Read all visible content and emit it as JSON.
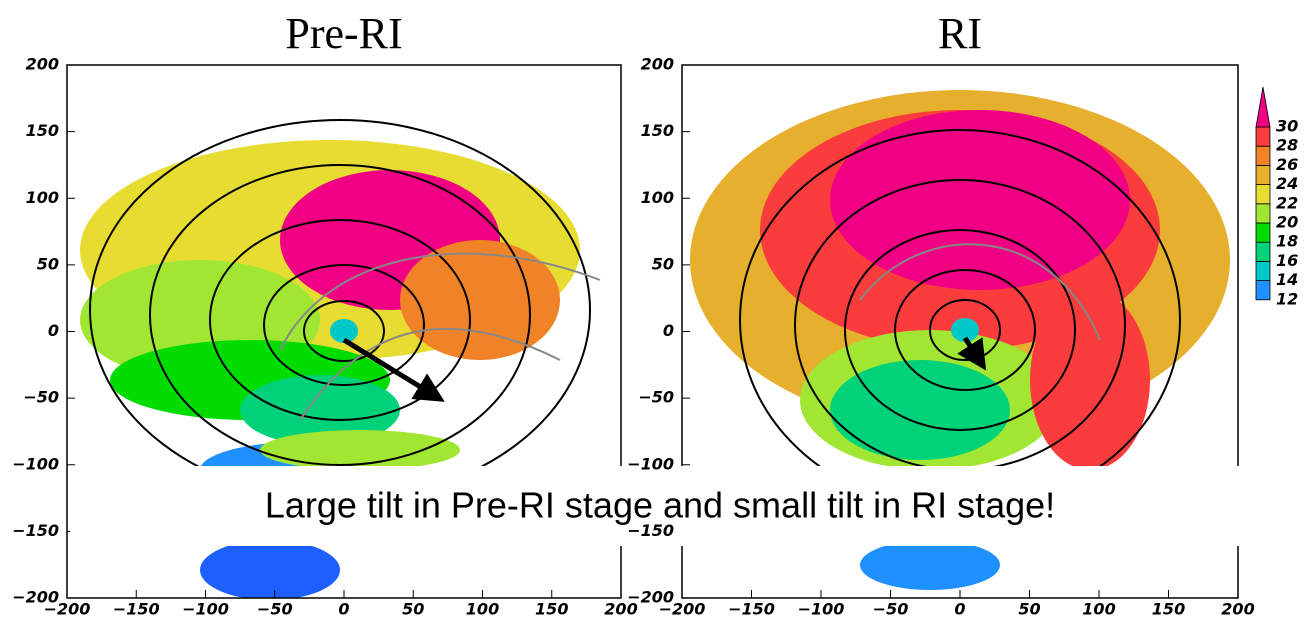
{
  "chart_data": [
    {
      "type": "contour",
      "title": "Pre-RI",
      "xlim": [
        -200,
        200
      ],
      "ylim": [
        -200,
        200
      ],
      "xticks": [
        {
          "value": -200,
          "label": "−200"
        },
        {
          "value": -150,
          "label": "−150"
        },
        {
          "value": -100,
          "label": "−100"
        },
        {
          "value": -50,
          "label": "−50"
        },
        0,
        50,
        100,
        150,
        200
      ],
      "yticks": [
        {
          "value": -200,
          "label": "−200"
        },
        {
          "value": -150,
          "label": "−150"
        },
        {
          "value": -100,
          "label": "−100"
        },
        {
          "value": -50,
          "label": "−50"
        },
        0,
        50,
        100,
        150,
        200
      ]
    },
    {
      "type": "contour",
      "title": "RI",
      "xlim": [
        -200,
        200
      ],
      "ylim": [
        -200,
        200
      ],
      "xticks": [
        {
          "value": -200,
          "label": "−200"
        },
        {
          "value": -150,
          "label": "−150"
        },
        {
          "value": -100,
          "label": "−100"
        },
        {
          "value": -50,
          "label": "−50"
        },
        0,
        50,
        100,
        150,
        200
      ],
      "yticks": [
        {
          "value": -200,
          "label": "−200"
        },
        {
          "value": -150,
          "label": "−150"
        },
        {
          "value": -100,
          "label": "−100"
        },
        {
          "value": -50,
          "label": "−50"
        },
        0,
        50,
        100,
        150,
        200
      ],
      "colorbar": {
        "levels": [
          12,
          14,
          16,
          18,
          20,
          22,
          24,
          26,
          28,
          30
        ],
        "colors": [
          "#1e90ff",
          "#00c8c8",
          "#00d27a",
          "#00dc00",
          "#a0e632",
          "#e6dc32",
          "#e6af2d",
          "#f08228",
          "#fa3c3c"
        ],
        "extend_color": "#f00082"
      }
    }
  ],
  "annotation": "Large tilt in Pre-RI stage and small tilt in  RI stage!"
}
